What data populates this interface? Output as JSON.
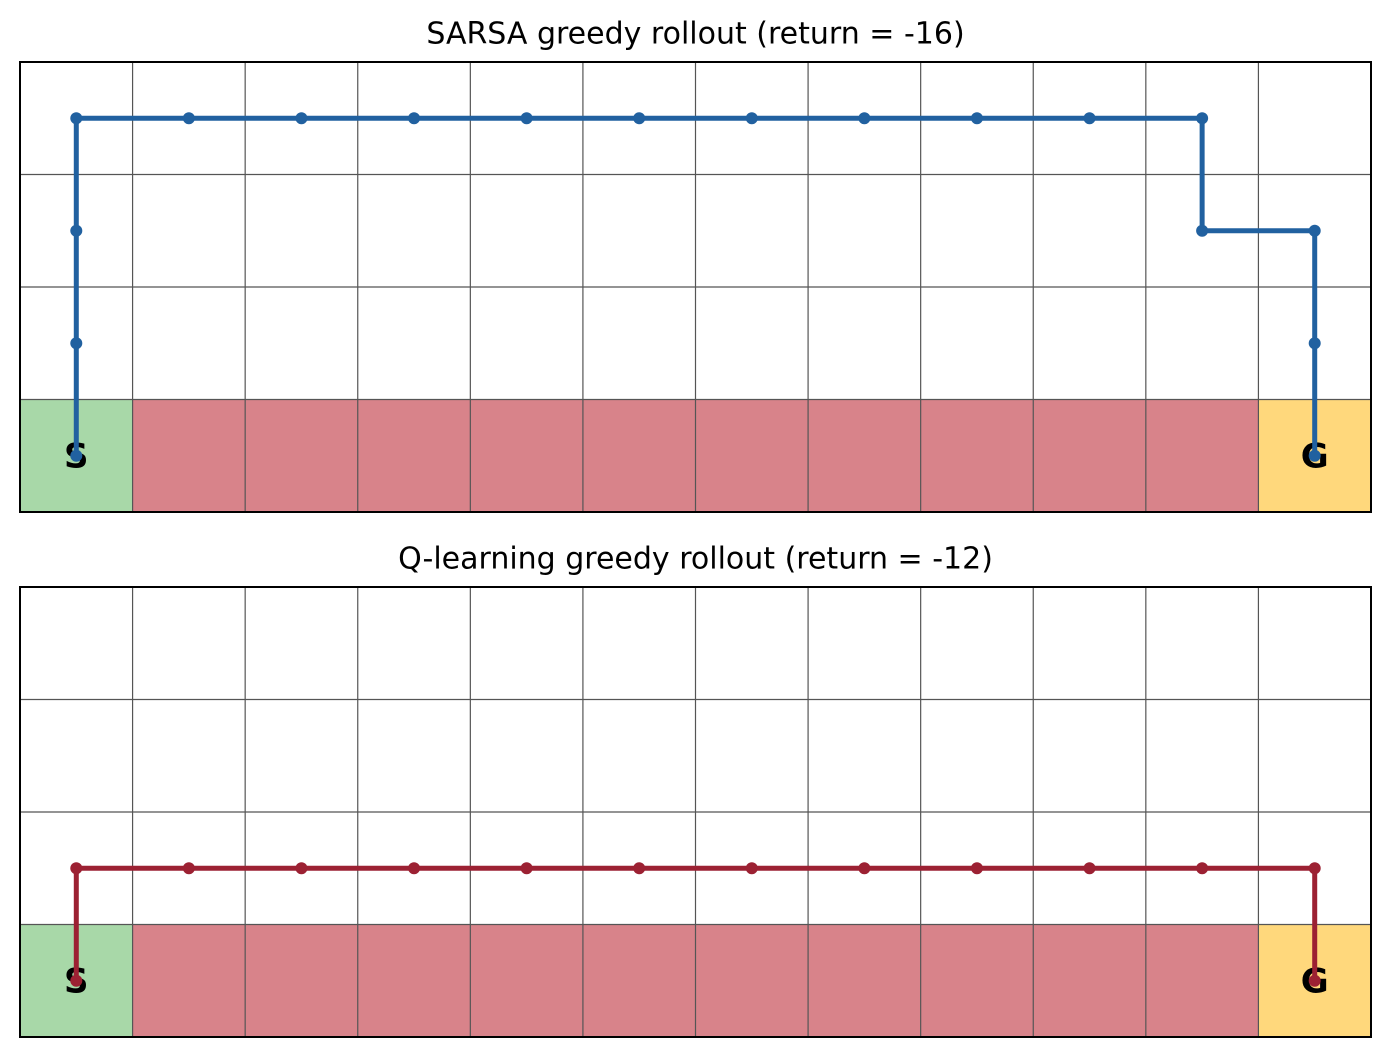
{
  "chart_data": [
    {
      "type": "line",
      "title": "SARSA greedy rollout (return = -16)",
      "xlim": [
        -0.5,
        11.5
      ],
      "ylim": [
        -0.5,
        3.5
      ],
      "xticks": [
        -0.5,
        0.5,
        1.5,
        2.5,
        3.5,
        4.5,
        5.5,
        6.5,
        7.5,
        8.5,
        9.5,
        10.5,
        11.5
      ],
      "yticks": [
        -0.5,
        0.5,
        1.5,
        2.5,
        3.5
      ],
      "grid": true,
      "regions": [
        {
          "x": [
            -0.5,
            0.5
          ],
          "y": [
            -0.5,
            0.5
          ],
          "color": "#a8d8a8"
        },
        {
          "x": [
            0.5,
            10.5
          ],
          "y": [
            -0.5,
            0.5
          ],
          "color": "#d8838a"
        },
        {
          "x": [
            10.5,
            11.5
          ],
          "y": [
            -0.5,
            0.5
          ],
          "color": "#ffd87c"
        }
      ],
      "annotations": [
        {
          "text": "S",
          "x": 0,
          "y": 0
        },
        {
          "text": "G",
          "x": 11,
          "y": 0
        }
      ],
      "color": "#2161a0",
      "x": [
        0,
        0,
        0,
        0,
        1,
        2,
        3,
        4,
        5,
        6,
        7,
        8,
        9,
        10,
        10,
        11,
        11,
        11
      ],
      "y": [
        0,
        1,
        2,
        3,
        3,
        3,
        3,
        3,
        3,
        3,
        3,
        3,
        3,
        3,
        2,
        2,
        1,
        0
      ]
    },
    {
      "type": "line",
      "title": "Q-learning greedy rollout (return = -12)",
      "xlim": [
        -0.5,
        11.5
      ],
      "ylim": [
        -0.5,
        3.5
      ],
      "xticks": [
        -0.5,
        0.5,
        1.5,
        2.5,
        3.5,
        4.5,
        5.5,
        6.5,
        7.5,
        8.5,
        9.5,
        10.5,
        11.5
      ],
      "yticks": [
        -0.5,
        0.5,
        1.5,
        2.5,
        3.5
      ],
      "grid": true,
      "regions": [
        {
          "x": [
            -0.5,
            0.5
          ],
          "y": [
            -0.5,
            0.5
          ],
          "color": "#a8d8a8"
        },
        {
          "x": [
            0.5,
            10.5
          ],
          "y": [
            -0.5,
            0.5
          ],
          "color": "#d8838a"
        },
        {
          "x": [
            10.5,
            11.5
          ],
          "y": [
            -0.5,
            0.5
          ],
          "color": "#ffd87c"
        }
      ],
      "annotations": [
        {
          "text": "S",
          "x": 0,
          "y": 0
        },
        {
          "text": "G",
          "x": 11,
          "y": 0
        }
      ],
      "color": "#9c2133",
      "x": [
        0,
        0,
        1,
        2,
        3,
        4,
        5,
        6,
        7,
        8,
        9,
        10,
        11,
        11
      ],
      "y": [
        0,
        1,
        1,
        1,
        1,
        1,
        1,
        1,
        1,
        1,
        1,
        1,
        1,
        0
      ]
    }
  ]
}
